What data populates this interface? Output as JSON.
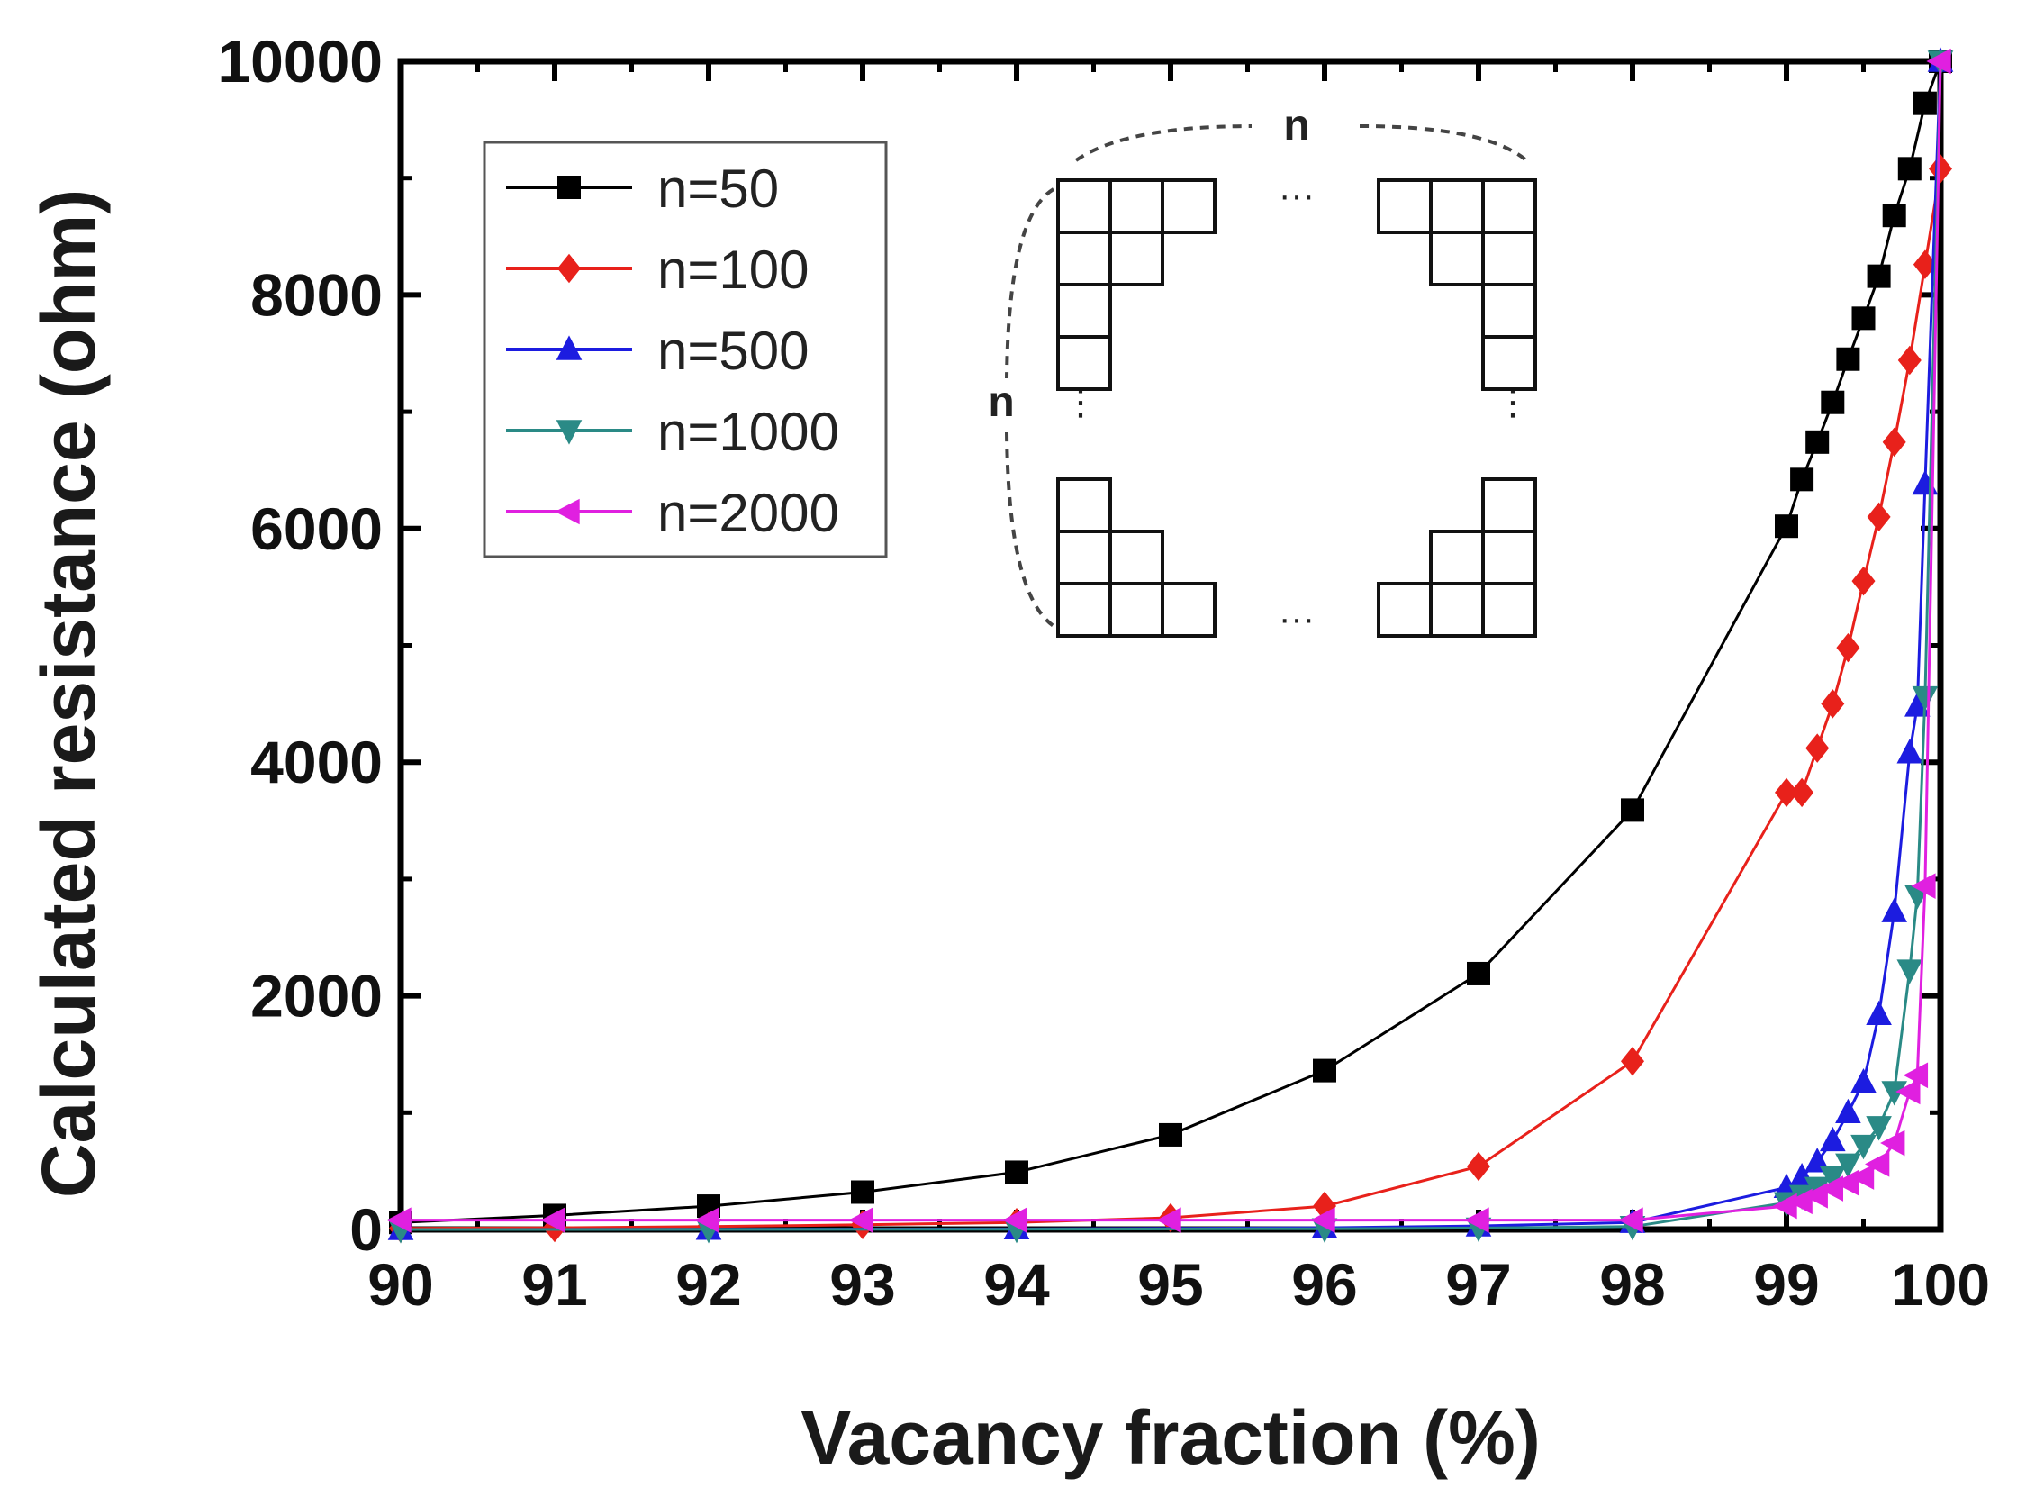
{
  "chart_data": {
    "type": "line",
    "title": "",
    "xlabel": "Vacancy fraction (%)",
    "ylabel": "Calculated resistance (ohm)",
    "xlim": [
      90,
      100
    ],
    "ylim": [
      0,
      10000
    ],
    "xticks": [
      "90",
      "91",
      "92",
      "93",
      "94",
      "95",
      "96",
      "97",
      "98",
      "99",
      "100"
    ],
    "yticks": [
      "0",
      "2000",
      "4000",
      "6000",
      "8000",
      "10000"
    ],
    "grid": false,
    "legend_position": "top-left",
    "series": [
      {
        "name": "n=50",
        "color": "#000000",
        "marker": "square",
        "x": [
          90,
          91,
          92,
          93,
          94,
          95,
          96,
          97,
          98,
          99,
          99.1,
          99.2,
          99.3,
          99.4,
          99.5,
          99.6,
          99.7,
          99.8,
          99.9,
          100
        ],
        "y": [
          60,
          120,
          200,
          320,
          490,
          810,
          1360,
          2190,
          3590,
          6020,
          6420,
          6740,
          7080,
          7450,
          7800,
          8160,
          8680,
          9080,
          9640,
          10000
        ]
      },
      {
        "name": "n=100",
        "color": "#e8211b",
        "marker": "diamond",
        "x": [
          90,
          91,
          92,
          93,
          94,
          95,
          96,
          97,
          98,
          99,
          99.1,
          99.2,
          99.3,
          99.4,
          99.5,
          99.6,
          99.7,
          99.8,
          99.9,
          100
        ],
        "y": [
          10,
          15,
          25,
          40,
          60,
          100,
          200,
          540,
          1440,
          3740,
          3740,
          4120,
          4500,
          4980,
          5550,
          6100,
          6740,
          7440,
          8260,
          9080
        ]
      },
      {
        "name": "n=500",
        "color": "#1c1ce0",
        "marker": "triangle-up",
        "x": [
          90,
          92,
          94,
          96,
          97,
          98,
          99,
          99.1,
          99.2,
          99.3,
          99.4,
          99.5,
          99.6,
          99.7,
          99.8,
          99.85,
          99.9,
          100
        ],
        "y": [
          0,
          2,
          5,
          15,
          30,
          60,
          360,
          450,
          580,
          760,
          1000,
          1260,
          1840,
          2720,
          4080,
          4480,
          6380,
          10000
        ]
      },
      {
        "name": "n=1000",
        "color": "#2a8a86",
        "marker": "triangle-down",
        "x": [
          90,
          92,
          94,
          96,
          97,
          98,
          99,
          99.1,
          99.2,
          99.3,
          99.4,
          99.5,
          99.6,
          99.7,
          99.8,
          99.85,
          99.9,
          100
        ],
        "y": [
          0,
          1,
          2,
          6,
          12,
          25,
          230,
          290,
          360,
          450,
          560,
          720,
          880,
          1180,
          2220,
          2860,
          4560,
          10000
        ]
      },
      {
        "name": "n=2000",
        "color": "#e020e0",
        "marker": "triangle-left",
        "x": [
          90,
          91,
          92,
          93,
          94,
          95,
          96,
          97,
          98,
          99,
          99.1,
          99.2,
          99.3,
          99.4,
          99.5,
          99.6,
          99.7,
          99.8,
          99.85,
          99.9,
          100
        ],
        "y": [
          80,
          80,
          80,
          80,
          80,
          80,
          80,
          80,
          80,
          200,
          240,
          290,
          350,
          400,
          450,
          560,
          740,
          1180,
          1320,
          2940,
          10000
        ]
      }
    ],
    "inset": {
      "labels": [
        "n",
        "n"
      ],
      "ellipsis": [
        "···",
        "···",
        "⋮",
        "⋮"
      ]
    }
  }
}
